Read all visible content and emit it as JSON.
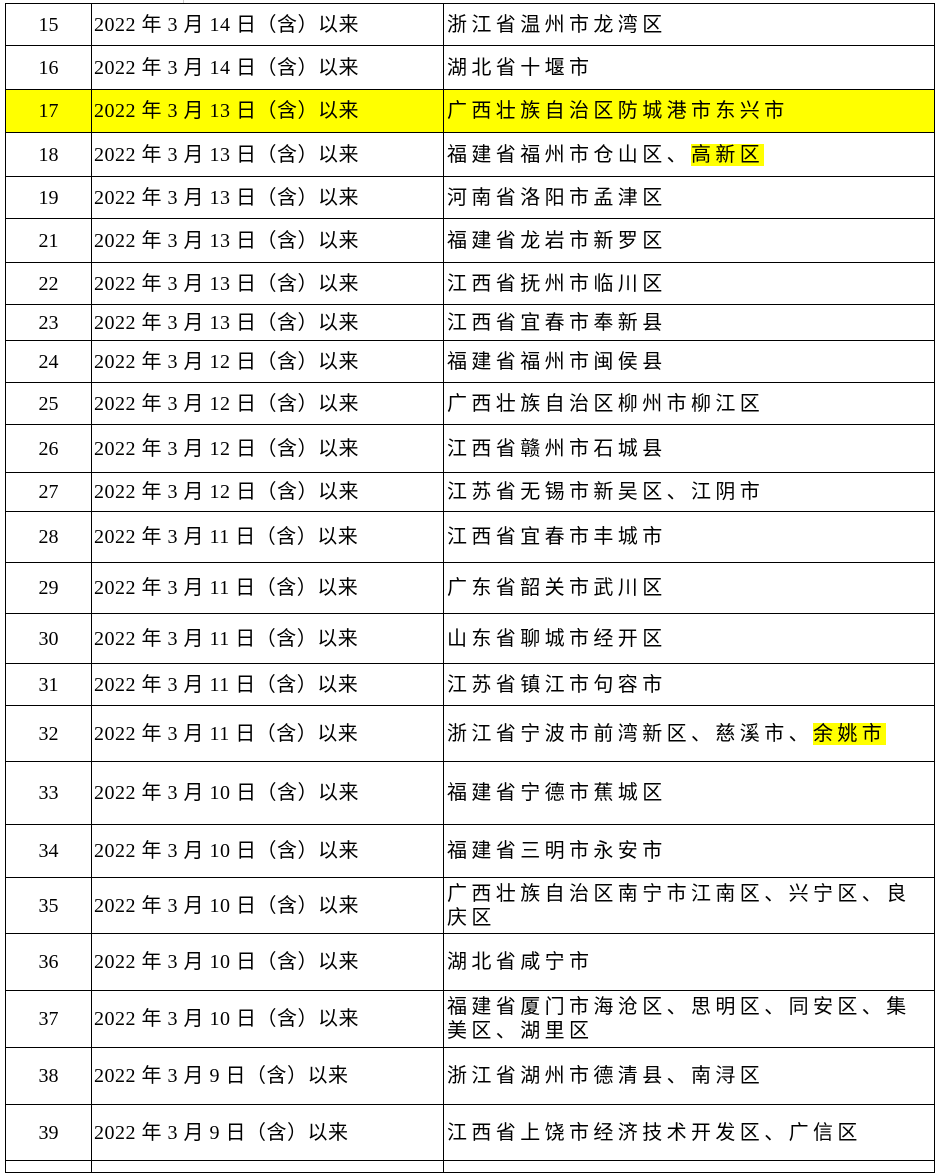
{
  "highlight_color": "#ffff00",
  "rows": [
    {
      "no": "15",
      "date": "2022 年 3 月 14 日（含）以来",
      "area": [
        {
          "text": "浙江省温州市龙湾区"
        }
      ]
    },
    {
      "no": "16",
      "date": "2022 年 3 月 14 日（含）以来",
      "area": [
        {
          "text": "湖北省十堰市"
        }
      ]
    },
    {
      "no": "17",
      "date": "2022 年 3 月 13 日（含）以来",
      "area": [
        {
          "text": "广西壮族自治区防城港市东兴市"
        }
      ],
      "highlighted": true
    },
    {
      "no": "18",
      "date": "2022 年 3 月 13 日（含）以来",
      "area": [
        {
          "text": "福建省福州市仓山区、"
        },
        {
          "text": "高新区",
          "highlighted": true
        }
      ]
    },
    {
      "no": "19",
      "date": "2022 年 3 月 13 日（含）以来",
      "area": [
        {
          "text": "河南省洛阳市孟津区"
        }
      ]
    },
    {
      "no": "21",
      "date": "2022 年 3 月 13 日（含）以来",
      "area": [
        {
          "text": "福建省龙岩市新罗区"
        }
      ]
    },
    {
      "no": "22",
      "date": "2022 年 3 月 13 日（含）以来",
      "area": [
        {
          "text": "江西省抚州市临川区"
        }
      ]
    },
    {
      "no": "23",
      "date": "2022 年 3 月 13 日（含）以来",
      "area": [
        {
          "text": "江西省宜春市奉新县"
        }
      ]
    },
    {
      "no": "24",
      "date": "2022 年 3 月 12 日（含）以来",
      "area": [
        {
          "text": "福建省福州市闽侯县"
        }
      ]
    },
    {
      "no": "25",
      "date": "2022 年 3 月 12 日（含）以来",
      "area": [
        {
          "text": "广西壮族自治区柳州市柳江区"
        }
      ]
    },
    {
      "no": "26",
      "date": "2022 年 3 月 12 日（含）以来",
      "area": [
        {
          "text": "江西省赣州市石城县"
        }
      ]
    },
    {
      "no": "27",
      "date": "2022 年 3 月 12 日（含）以来",
      "area": [
        {
          "text": "江苏省无锡市新吴区、江阴市"
        }
      ]
    },
    {
      "no": "28",
      "date": "2022 年 3 月 11 日（含）以来",
      "area": [
        {
          "text": "江西省宜春市丰城市"
        }
      ]
    },
    {
      "no": "29",
      "date": "2022 年 3 月 11 日（含）以来",
      "area": [
        {
          "text": "广东省韶关市武川区"
        }
      ]
    },
    {
      "no": "30",
      "date": "2022 年 3 月 11 日（含）以来",
      "area": [
        {
          "text": "山东省聊城市经开区"
        }
      ]
    },
    {
      "no": "31",
      "date": "2022 年 3 月 11 日（含）以来",
      "area": [
        {
          "text": "江苏省镇江市句容市"
        }
      ]
    },
    {
      "no": "32",
      "date": "2022 年 3 月 11 日（含）以来",
      "area": [
        {
          "text": "浙江省宁波市前湾新区、慈溪市、"
        },
        {
          "text": "余姚市",
          "highlighted": true
        }
      ]
    },
    {
      "no": "33",
      "date": "2022 年 3 月 10 日（含）以来",
      "area": [
        {
          "text": "福建省宁德市蕉城区"
        }
      ]
    },
    {
      "no": "34",
      "date": "2022 年 3 月 10 日（含）以来",
      "area": [
        {
          "text": "福建省三明市永安市"
        }
      ]
    },
    {
      "no": "35",
      "date": "2022 年 3 月 10 日（含）以来",
      "area": [
        {
          "text": "广西壮族自治区南宁市江南区、兴宁区、良庆区"
        }
      ]
    },
    {
      "no": "36",
      "date": "2022 年 3 月 10 日（含）以来",
      "area": [
        {
          "text": "湖北省咸宁市"
        }
      ]
    },
    {
      "no": "37",
      "date": "2022 年 3 月 10 日（含）以来",
      "area": [
        {
          "text": "福建省厦门市海沧区、思明区、同安区、集美区、湖里区"
        }
      ]
    },
    {
      "no": "38",
      "date": "2022 年 3 月 9 日（含）以来",
      "area": [
        {
          "text": "浙江省湖州市德清县、南浔区"
        }
      ]
    },
    {
      "no": "39",
      "date": "2022 年 3 月 9 日（含）以来",
      "area": [
        {
          "text": "江西省上饶市经济技术开发区、广信区"
        }
      ]
    }
  ]
}
